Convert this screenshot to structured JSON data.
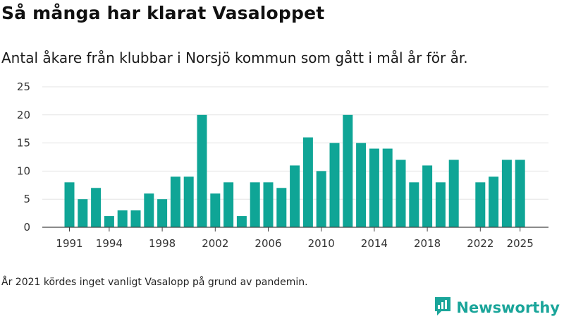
{
  "header": {
    "title": "Så många har klarat Vasaloppet",
    "subtitle": "Antal åkare från klubbar i Norsjö kommun som gått i mål år för år."
  },
  "footnote": "År 2021 kördes inget vanligt Vasalopp på grund av pandemin.",
  "brand": {
    "name": "Newsworthy",
    "icon": "newsworthy-logo-icon",
    "color": "#1aa59a"
  },
  "colors": {
    "bar": "#0fa596",
    "grid": "#e3e3e3",
    "axis": "#444444"
  },
  "chart_data": {
    "type": "bar",
    "title": "Så många har klarat Vasaloppet",
    "subtitle": "Antal åkare från klubbar i Norsjö kommun som gått i mål år för år.",
    "xlabel": "",
    "ylabel": "",
    "ylim": [
      0,
      25
    ],
    "yticks": [
      0,
      5,
      10,
      15,
      20,
      25
    ],
    "grid": true,
    "xtick_labels": [
      "1991",
      "1994",
      "1998",
      "2002",
      "2006",
      "2010",
      "2014",
      "2018",
      "2022",
      "2025"
    ],
    "categories": [
      1991,
      1992,
      1993,
      1994,
      1995,
      1996,
      1997,
      1998,
      1999,
      2000,
      2001,
      2002,
      2003,
      2004,
      2005,
      2006,
      2007,
      2008,
      2009,
      2010,
      2011,
      2012,
      2013,
      2014,
      2015,
      2016,
      2017,
      2018,
      2019,
      2020,
      2021,
      2022,
      2023,
      2024,
      2025
    ],
    "values": [
      8,
      5,
      7,
      2,
      3,
      3,
      6,
      5,
      9,
      9,
      20,
      6,
      8,
      2,
      8,
      8,
      7,
      11,
      16,
      10,
      15,
      20,
      15,
      14,
      14,
      12,
      8,
      11,
      8,
      12,
      null,
      8,
      9,
      12,
      12
    ]
  }
}
